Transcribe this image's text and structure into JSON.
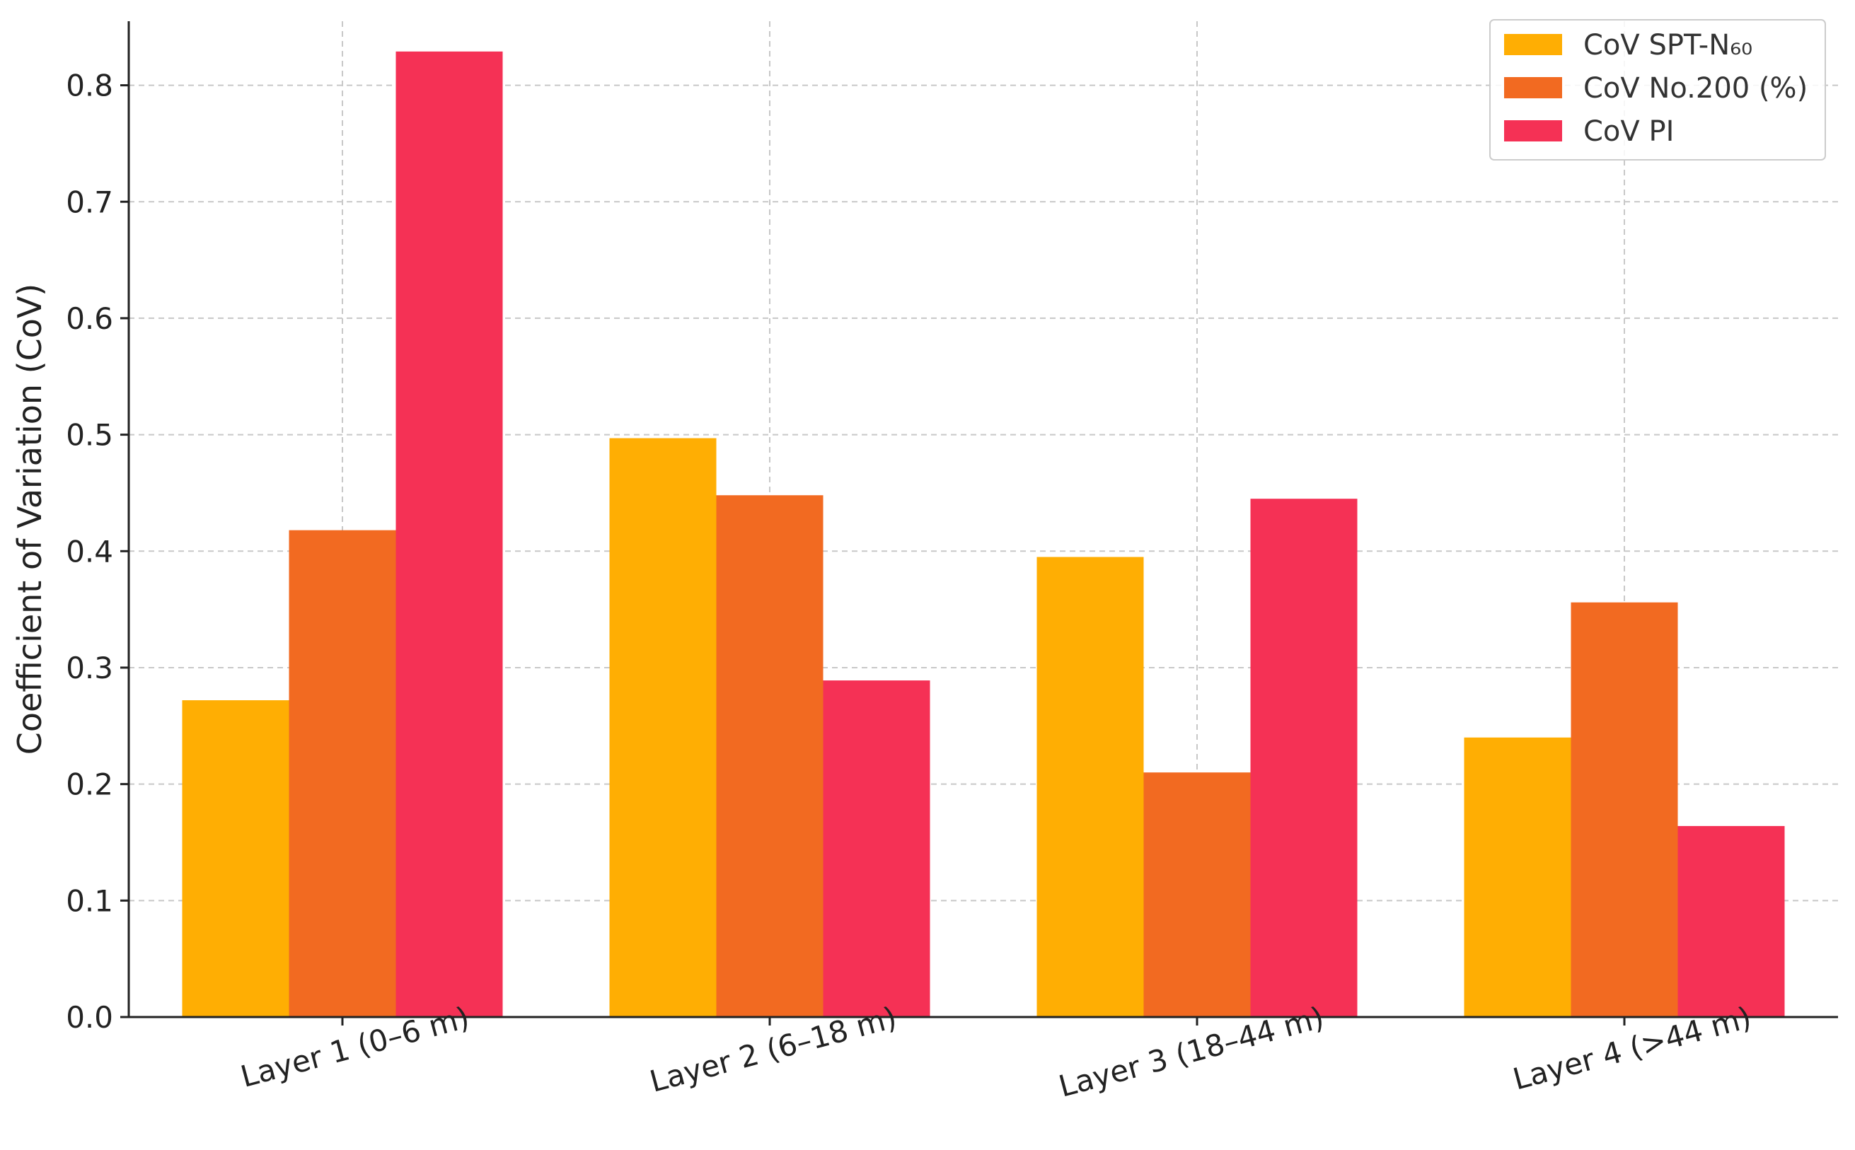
{
  "chart_data": {
    "type": "bar",
    "title": "",
    "xlabel": "",
    "ylabel": "Coefficient of Variation (CoV)",
    "ylim": [
      0,
      0.855
    ],
    "yticks": [
      0.0,
      0.1,
      0.2,
      0.3,
      0.4,
      0.5,
      0.6,
      0.7,
      0.8
    ],
    "grid": true,
    "legend_position": "top-right",
    "categories": [
      "Layer 1 (0–6 m)",
      "Layer 2 (6–18 m)",
      "Layer 3 (18–44 m)",
      "Layer 4 (>44 m)"
    ],
    "series": [
      {
        "name": "CoV SPT-N₆₀",
        "color": "#FFAE03",
        "values": [
          0.272,
          0.497,
          0.395,
          0.24
        ]
      },
      {
        "name": "CoV No.200 (%)",
        "color": "#F26A21",
        "values": [
          0.418,
          0.448,
          0.21,
          0.356
        ]
      },
      {
        "name": "CoV PI",
        "color": "#F53155",
        "values": [
          0.829,
          0.289,
          0.445,
          0.164
        ]
      }
    ]
  }
}
